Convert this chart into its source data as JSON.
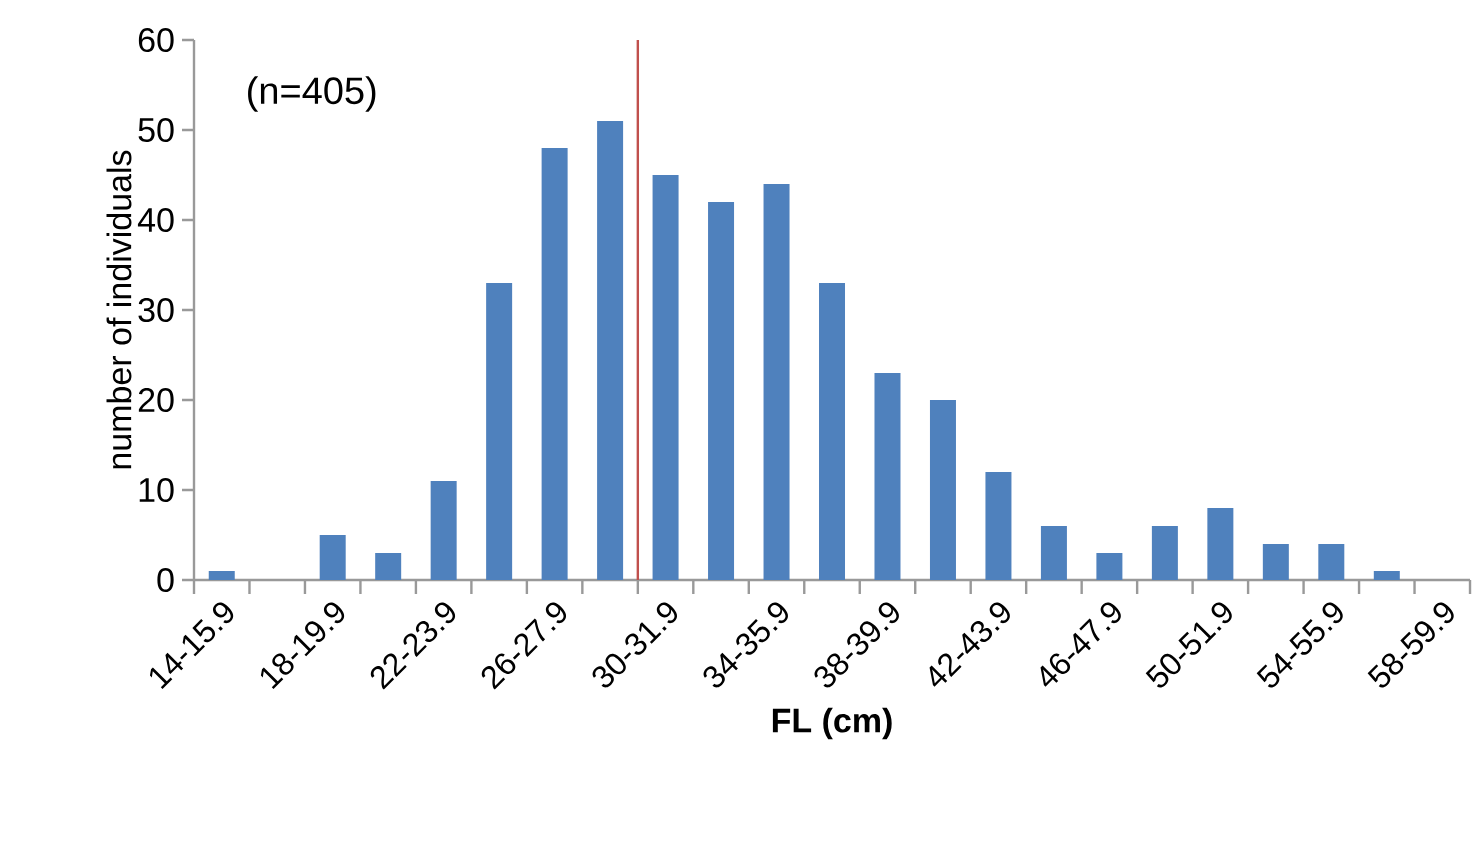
{
  "chart_data": {
    "type": "bar",
    "xlabel": "FL (cm)",
    "ylabel": "number of individuals",
    "categories": [
      "14-15.9",
      null,
      "18-19.9",
      null,
      "22-23.9",
      null,
      "26-27.9",
      null,
      "30-31.9",
      null,
      "34-35.9",
      null,
      "38-39.9",
      null,
      "42-43.9",
      null,
      "46-47.9",
      null,
      "50-51.9",
      null,
      "54-55.9",
      null,
      "58-59.9"
    ],
    "values": [
      1,
      0,
      5,
      3,
      11,
      33,
      48,
      51,
      45,
      42,
      44,
      33,
      23,
      20,
      12,
      6,
      3,
      6,
      8,
      4,
      4,
      1,
      0
    ],
    "color": "#4f81bd",
    "ylim": [
      0,
      60
    ],
    "yticks": [
      0,
      10,
      20,
      30,
      40,
      50,
      60
    ],
    "ref_lines": [
      {
        "axis": "x",
        "value": "30-31.9",
        "color": "#c0504d"
      }
    ],
    "annotations": [
      "(n=405)"
    ]
  }
}
